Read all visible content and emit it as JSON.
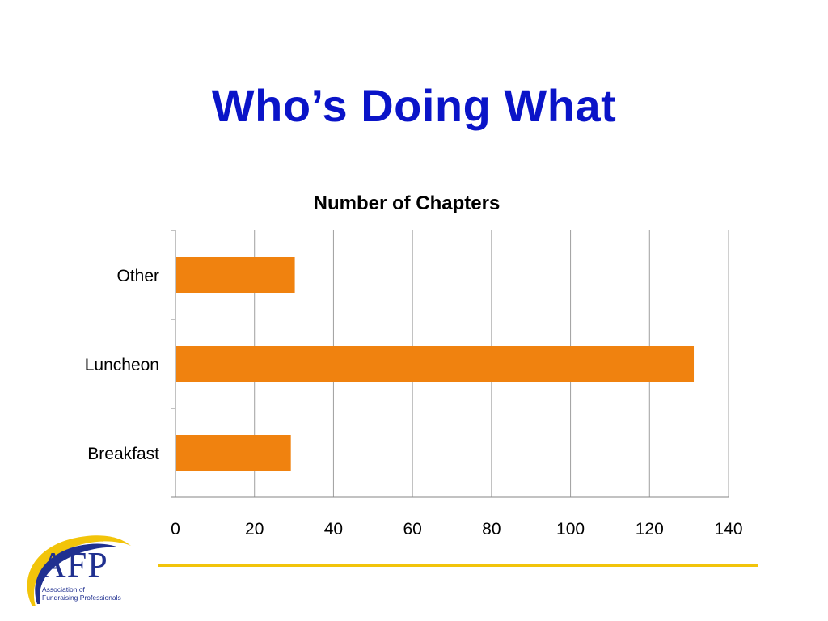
{
  "slide": {
    "title": "Who’s Doing What"
  },
  "chart_data": {
    "type": "bar",
    "orientation": "horizontal",
    "title": "Number of Chapters",
    "categories": [
      "Other",
      "Luncheon",
      "Breakfast"
    ],
    "values": [
      30,
      131,
      29
    ],
    "xlim": [
      0,
      140
    ],
    "xticks": [
      "0",
      "20",
      "40",
      "60",
      "80",
      "100",
      "120",
      "140"
    ],
    "xtick_values": [
      0,
      20,
      40,
      60,
      80,
      100,
      120,
      140
    ],
    "grid": "vertical",
    "legend": "none",
    "bar_color": "#f0820f",
    "grid_color": "#a0a0a0"
  },
  "logo": {
    "text": "AFP",
    "subtitle_line1": "Association of",
    "subtitle_line2": "Fundraising Professionals",
    "colors": {
      "primary": "#203090",
      "accent": "#f2c40a"
    }
  },
  "colors": {
    "title": "#0a14c8",
    "divider": "#f2c40a"
  }
}
